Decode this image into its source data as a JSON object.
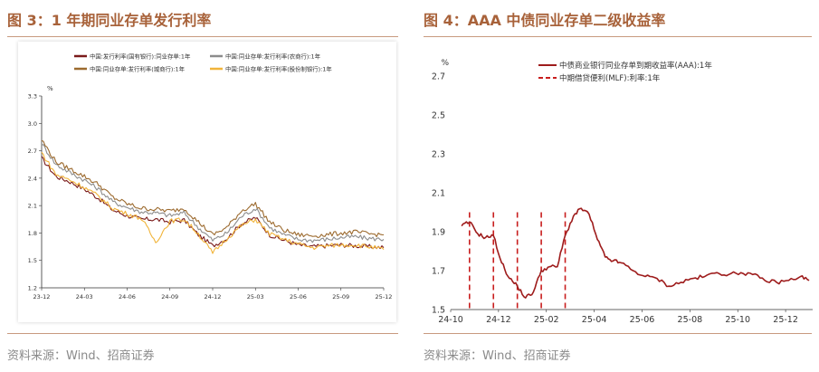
{
  "figures": [
    {
      "title": "图 3：1 年期同业存单发行利率",
      "source": "资料来源：Wind、招商证券"
    },
    {
      "title": "图 4：AAA 中债同业存单二级收益率",
      "source": "资料来源：Wind、招商证券"
    }
  ],
  "chart_data": [
    {
      "type": "line",
      "title": "",
      "ylabel": "%",
      "xlabel": "",
      "ylim": [
        1.2,
        3.3
      ],
      "yticks": [
        "1.2",
        "1.5",
        "1.8",
        "2.1",
        "2.4",
        "2.7",
        "3.0",
        "3.3"
      ],
      "xticks": [
        "23-12",
        "24-03",
        "24-06",
        "24-09",
        "24-12",
        "25-03",
        "25-06",
        "25-09",
        "25-12"
      ],
      "legend_position": "top",
      "grid": false,
      "x": [
        "23-12",
        "24-01",
        "24-02",
        "24-03",
        "24-04",
        "24-05",
        "24-06",
        "24-07",
        "24-08",
        "24-09",
        "24-10",
        "24-11",
        "24-12",
        "25-01",
        "25-02",
        "25-03",
        "25-04",
        "25-05",
        "25-06",
        "25-07",
        "25-08",
        "25-09",
        "25-10",
        "25-11",
        "25-12"
      ],
      "series": [
        {
          "name": "中国:发行利率(国有银行):同业存单:1年",
          "color": "#7a1a1a",
          "values": [
            2.62,
            2.42,
            2.36,
            2.28,
            2.18,
            2.05,
            1.99,
            1.95,
            1.95,
            1.92,
            1.94,
            1.78,
            1.66,
            1.74,
            1.9,
            1.97,
            1.78,
            1.72,
            1.67,
            1.65,
            1.66,
            1.67,
            1.66,
            1.65,
            1.64
          ]
        },
        {
          "name": "中国:同业存单:发行利率(农商行):1年",
          "color": "#8c8c8c",
          "values": [
            2.78,
            2.55,
            2.46,
            2.38,
            2.28,
            2.14,
            2.08,
            2.03,
            2.02,
            1.99,
            2.02,
            1.86,
            1.72,
            1.8,
            1.98,
            2.07,
            1.86,
            1.78,
            1.73,
            1.72,
            1.73,
            1.75,
            1.76,
            1.74,
            1.73
          ]
        },
        {
          "name": "中国:同业存单:发行利率(城商行):1年",
          "color": "#9c6a2e",
          "values": [
            2.82,
            2.58,
            2.5,
            2.42,
            2.33,
            2.19,
            2.12,
            2.07,
            2.06,
            2.04,
            2.07,
            1.92,
            1.78,
            1.86,
            2.04,
            2.12,
            1.92,
            1.83,
            1.78,
            1.77,
            1.78,
            1.8,
            1.81,
            1.79,
            1.78
          ]
        },
        {
          "name": "中国:同业存单:发行利率(股份制银行):1年",
          "color": "#f1b43a",
          "values": [
            2.68,
            2.44,
            2.38,
            2.3,
            2.2,
            2.07,
            2.01,
            1.96,
            1.7,
            1.93,
            1.95,
            1.79,
            1.58,
            1.74,
            1.88,
            1.95,
            1.79,
            1.73,
            1.68,
            1.64,
            1.66,
            1.67,
            1.67,
            1.65,
            1.62
          ]
        }
      ]
    },
    {
      "type": "line",
      "title": "",
      "ylabel": "%",
      "xlabel": "",
      "ylim": [
        1.5,
        2.7
      ],
      "yticks": [
        "1.5",
        "1.7",
        "1.9",
        "2.1",
        "2.3",
        "2.5",
        "2.7"
      ],
      "xticks": [
        "24-10",
        "24-12",
        "25-02",
        "25-04",
        "25-06",
        "25-08",
        "25-10",
        "25-12"
      ],
      "legend_position": "top-right",
      "grid": false,
      "x": [
        "24-10-15",
        "24-10-25",
        "24-11-05",
        "24-11-15",
        "24-11-25",
        "24-12-05",
        "24-12-15",
        "24-12-25",
        "25-01-05",
        "25-01-15",
        "25-01-25",
        "25-02-05",
        "25-02-15",
        "25-02-25",
        "25-03-05",
        "25-03-15",
        "25-03-25",
        "25-04-05",
        "25-04-15",
        "25-04-25",
        "25-05-05",
        "25-05-20",
        "25-06-05",
        "25-06-20",
        "25-07-05",
        "25-07-20",
        "25-08-05",
        "25-08-20",
        "25-09-05",
        "25-09-20",
        "25-10-05",
        "25-10-20",
        "25-11-05",
        "25-11-20",
        "25-12-05",
        "25-12-20",
        "25-12-31"
      ],
      "series": [
        {
          "name": "中债商业银行同业存单到期收益率(AAA):1年",
          "color": "#9e1c1c",
          "style": "solid",
          "values": [
            1.93,
            1.95,
            1.89,
            1.87,
            1.88,
            1.74,
            1.66,
            1.62,
            1.56,
            1.59,
            1.7,
            1.72,
            1.72,
            1.88,
            1.98,
            2.02,
            1.99,
            1.86,
            1.77,
            1.75,
            1.74,
            1.7,
            1.67,
            1.66,
            1.62,
            1.64,
            1.66,
            1.67,
            1.69,
            1.68,
            1.69,
            1.68,
            1.65,
            1.64,
            1.65,
            1.67,
            1.65
          ]
        },
        {
          "name": "中期借贷便利(MLF):利率:1年",
          "color": "#c81e1e",
          "style": "dashed",
          "x": [
            "24-10-25",
            "24-11-25",
            "24-12-25",
            "25-01-25",
            "25-02-25"
          ],
          "values": [
            2.0,
            2.0,
            2.0,
            2.0,
            2.0
          ]
        }
      ]
    }
  ]
}
